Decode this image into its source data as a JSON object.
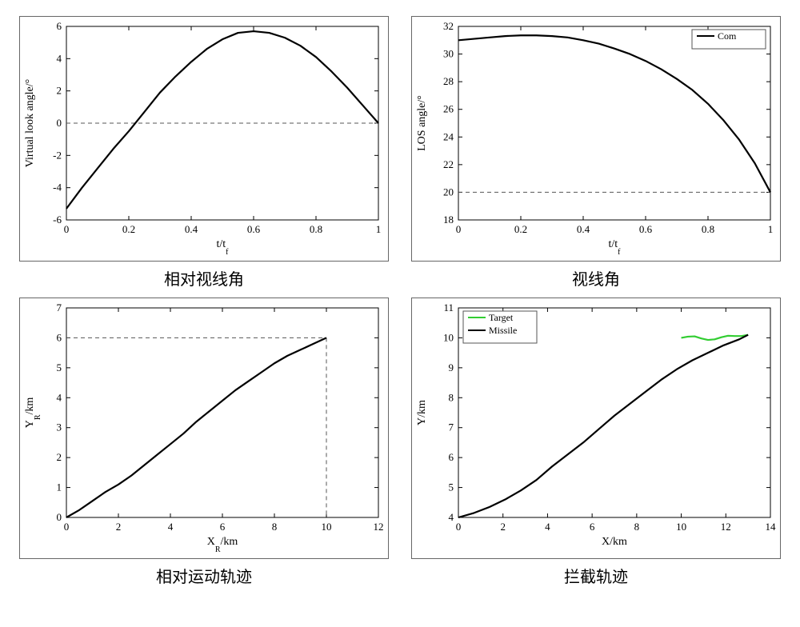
{
  "figure": {
    "background_color": "#ffffff",
    "axis_line_color": "#000000",
    "tick_color": "#000000",
    "tick_fontsize": 13,
    "label_fontsize": 14,
    "series_linewidth": 2.2,
    "dash_color": "#555555",
    "dash_pattern": "5,4",
    "black": "#000000",
    "green": "#32cd32",
    "caption_fontsize": 20
  },
  "panels": {
    "tl": {
      "type": "line",
      "caption": "相对视线角",
      "xlabel": "t/t_f",
      "ylabel": "Virtual look angle/°",
      "xlim": [
        0,
        1
      ],
      "ylim": [
        -6,
        6
      ],
      "xticks": [
        0,
        0.2,
        0.4,
        0.6,
        0.8,
        1
      ],
      "yticks": [
        -6,
        -4,
        -2,
        0,
        2,
        4,
        6
      ],
      "hline": 0,
      "series": [
        {
          "color": "#000000",
          "data": [
            [
              0,
              -5.3
            ],
            [
              0.05,
              -4.0
            ],
            [
              0.1,
              -2.8
            ],
            [
              0.15,
              -1.6
            ],
            [
              0.2,
              -0.5
            ],
            [
              0.25,
              0.7
            ],
            [
              0.3,
              1.9
            ],
            [
              0.35,
              2.9
            ],
            [
              0.4,
              3.8
            ],
            [
              0.45,
              4.6
            ],
            [
              0.5,
              5.2
            ],
            [
              0.55,
              5.6
            ],
            [
              0.6,
              5.7
            ],
            [
              0.65,
              5.6
            ],
            [
              0.7,
              5.3
            ],
            [
              0.75,
              4.8
            ],
            [
              0.8,
              4.1
            ],
            [
              0.85,
              3.2
            ],
            [
              0.9,
              2.2
            ],
            [
              0.95,
              1.1
            ],
            [
              1.0,
              0.0
            ]
          ]
        }
      ]
    },
    "tr": {
      "type": "line",
      "caption": "视线角",
      "xlabel": "t/t_f",
      "ylabel": "LOS angle/°",
      "xlim": [
        0,
        1
      ],
      "ylim": [
        18,
        32
      ],
      "xticks": [
        0,
        0.2,
        0.4,
        0.6,
        0.8,
        1
      ],
      "yticks": [
        18,
        20,
        22,
        24,
        26,
        28,
        30,
        32
      ],
      "hline": 20,
      "legend": [
        {
          "label": "Com",
          "color": "#000000"
        }
      ],
      "series": [
        {
          "color": "#000000",
          "data": [
            [
              0,
              31.0
            ],
            [
              0.05,
              31.1
            ],
            [
              0.1,
              31.2
            ],
            [
              0.15,
              31.3
            ],
            [
              0.2,
              31.35
            ],
            [
              0.25,
              31.35
            ],
            [
              0.3,
              31.3
            ],
            [
              0.35,
              31.2
            ],
            [
              0.4,
              31.0
            ],
            [
              0.45,
              30.75
            ],
            [
              0.5,
              30.4
            ],
            [
              0.55,
              30.0
            ],
            [
              0.6,
              29.5
            ],
            [
              0.65,
              28.9
            ],
            [
              0.7,
              28.2
            ],
            [
              0.75,
              27.4
            ],
            [
              0.8,
              26.4
            ],
            [
              0.85,
              25.2
            ],
            [
              0.9,
              23.8
            ],
            [
              0.95,
              22.1
            ],
            [
              1.0,
              20.0
            ]
          ]
        }
      ]
    },
    "bl": {
      "type": "line",
      "caption": "相对运动轨迹",
      "xlabel": "X_R/km",
      "ylabel": "Y_R/km",
      "xlim": [
        0,
        12
      ],
      "ylim": [
        0,
        7
      ],
      "xticks": [
        0,
        2,
        4,
        6,
        8,
        10,
        12
      ],
      "yticks": [
        0,
        1,
        2,
        3,
        4,
        5,
        6,
        7
      ],
      "marker_x": 10,
      "marker_y": 6,
      "series": [
        {
          "color": "#000000",
          "data": [
            [
              0,
              0
            ],
            [
              0.5,
              0.25
            ],
            [
              1.0,
              0.55
            ],
            [
              1.5,
              0.85
            ],
            [
              2.0,
              1.1
            ],
            [
              2.5,
              1.4
            ],
            [
              3.0,
              1.75
            ],
            [
              3.5,
              2.1
            ],
            [
              4.0,
              2.45
            ],
            [
              4.5,
              2.8
            ],
            [
              5.0,
              3.2
            ],
            [
              5.5,
              3.55
            ],
            [
              6.0,
              3.9
            ],
            [
              6.5,
              4.25
            ],
            [
              7.0,
              4.55
            ],
            [
              7.5,
              4.85
            ],
            [
              8.0,
              5.15
            ],
            [
              8.5,
              5.4
            ],
            [
              9.0,
              5.6
            ],
            [
              9.5,
              5.8
            ],
            [
              10.0,
              6.0
            ]
          ]
        }
      ]
    },
    "br": {
      "type": "line",
      "caption": "拦截轨迹",
      "xlabel": "X/km",
      "ylabel": "Y/km",
      "xlim": [
        0,
        14
      ],
      "ylim": [
        4,
        11
      ],
      "xticks": [
        0,
        2,
        4,
        6,
        8,
        10,
        12,
        14
      ],
      "yticks": [
        4,
        5,
        6,
        7,
        8,
        9,
        10,
        11
      ],
      "legend": [
        {
          "label": "Target",
          "color": "#32cd32"
        },
        {
          "label": "Missile",
          "color": "#000000"
        }
      ],
      "series": [
        {
          "color": "#32cd32",
          "data": [
            [
              10.0,
              10.0
            ],
            [
              10.3,
              10.04
            ],
            [
              10.6,
              10.05
            ],
            [
              10.9,
              9.98
            ],
            [
              11.2,
              9.93
            ],
            [
              11.5,
              9.95
            ],
            [
              11.8,
              10.02
            ],
            [
              12.1,
              10.07
            ],
            [
              12.4,
              10.06
            ],
            [
              12.7,
              10.06
            ],
            [
              13.0,
              10.1
            ]
          ]
        },
        {
          "color": "#000000",
          "data": [
            [
              0,
              4.0
            ],
            [
              0.7,
              4.15
            ],
            [
              1.4,
              4.35
            ],
            [
              2.1,
              4.6
            ],
            [
              2.8,
              4.9
            ],
            [
              3.5,
              5.25
            ],
            [
              4.2,
              5.7
            ],
            [
              4.9,
              6.1
            ],
            [
              5.6,
              6.5
            ],
            [
              6.3,
              6.95
            ],
            [
              7.0,
              7.4
            ],
            [
              7.7,
              7.8
            ],
            [
              8.4,
              8.2
            ],
            [
              9.1,
              8.6
            ],
            [
              9.8,
              8.95
            ],
            [
              10.5,
              9.25
            ],
            [
              11.2,
              9.5
            ],
            [
              11.9,
              9.75
            ],
            [
              12.6,
              9.95
            ],
            [
              13.0,
              10.1
            ]
          ]
        }
      ]
    }
  }
}
